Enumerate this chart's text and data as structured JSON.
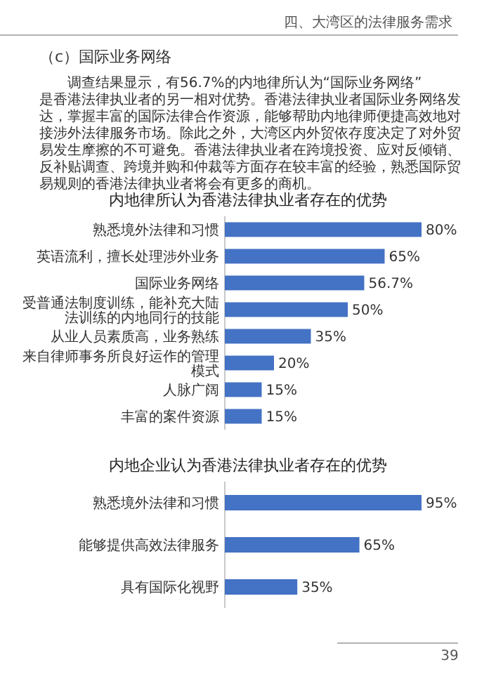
{
  "chart_data": [
    {
      "type": "bar",
      "orientation": "horizontal",
      "title": "内地律所认为香港法律执业者存在的优势",
      "categories": [
        "熟悉境外法律和习惯",
        "英语流利，擅长处理涉外业务",
        "国际业务网络",
        "受普通法制度训练，能补充大陆法训练的内地同行的技能",
        "从业人员素质高，业务熟练",
        "来自律师事务所良好运作的管理模式",
        "人脉广阔",
        "丰富的案件资源"
      ],
      "values": [
        80,
        65,
        56.7,
        50,
        35,
        20,
        15,
        15
      ],
      "value_labels": [
        "80%",
        "65%",
        "56.7%",
        "50%",
        "35%",
        "20%",
        "15%",
        "15%"
      ],
      "color": "#4472c4",
      "annotations": [
        "四、大湾区的法律服务需求",
        "（c）国际业务网络",
        "调查结果显示，有56.7%的内地律所认为“国际业务网络”是香港法律执业者的另一相对优势。香港法律执业者国际业务网络发达，掌握丰富的国际法律合作资源，能够帮助内地律师便捷高效地对接涉外法律服务市场。除此之外，大湾区内外贸依存度决定了对外贸易发生摩擦的不可避免。香港法律执业者在跨境投资、应对反倾销、反补贴调查、跨境并购和仲裁等方面存在较丰富的经验，熟悉国际贸易规则的香港法律执业者将会有更多的商机。"
      ]
    },
    {
      "type": "bar",
      "orientation": "horizontal",
      "title": "内地企业认为香港法律执业者存在的优势",
      "categories": [
        "熟悉境外法律和习惯",
        "能够提供高效法律服务",
        "具有国际化视野"
      ],
      "values": [
        95,
        65,
        35
      ],
      "value_labels": [
        "95%",
        "65%",
        "35%"
      ],
      "color": "#4472c4",
      "annotations": [
        "39"
      ]
    }
  ]
}
